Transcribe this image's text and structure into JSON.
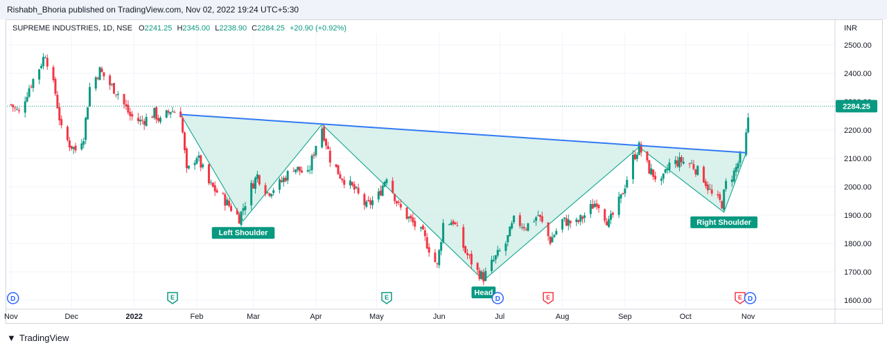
{
  "header": {
    "attribution": "Rishabh_Bhoria published on TradingView.com, Nov 02, 2022 19:24 UTC+5:30"
  },
  "footer": {
    "brand": "TradingView"
  },
  "legend": {
    "symbol": "SUPREME INDUSTRIES, 1D, NSE",
    "o_label": "O",
    "o_value": "2241.25",
    "h_label": "H",
    "h_value": "2345.00",
    "l_label": "L",
    "l_value": "2238.90",
    "c_label": "C",
    "c_value": "2284.25",
    "change": "+20.90 (+0.92%)"
  },
  "colors": {
    "up": "#089981",
    "down": "#f23645",
    "neckline": "#3179f5",
    "pattern_fill": "#d6efea",
    "pattern_line": "#22ab94",
    "price_label": "#089981"
  },
  "chart_data": {
    "type": "candlestick",
    "currency": "INR",
    "last_price": "2284.25",
    "ylim": [
      1600,
      2500
    ],
    "y_ticks": [
      "2500.00",
      "2400.00",
      "2300.00",
      "2200.00",
      "2100.00",
      "2000.00",
      "1900.00",
      "1800.00",
      "1700.00",
      "1600.00"
    ],
    "x_ticks": [
      "Nov",
      "Dec",
      "2022",
      "Feb",
      "Mar",
      "Apr",
      "May",
      "Jun",
      "Jul",
      "Aug",
      "Sep",
      "Oct",
      "Nov"
    ],
    "pattern": {
      "labels": [
        "Left Shoulder",
        "Head",
        "Right Shoulder"
      ],
      "points": [
        {
          "date": "2022-01-24",
          "price": 2255
        },
        {
          "date": "2022-02-24",
          "price": 1880
        },
        {
          "date": "2022-04-04",
          "price": 2220
        },
        {
          "date": "2022-06-23",
          "price": 1670
        },
        {
          "date": "2022-09-08",
          "price": 2140
        },
        {
          "date": "2022-10-20",
          "price": 1910
        },
        {
          "date": "2022-10-31",
          "price": 2120
        }
      ]
    },
    "events": [
      {
        "type": "D",
        "date": "2021-11-02"
      },
      {
        "type": "E",
        "date": "2022-01-20"
      },
      {
        "type": "E",
        "date": "2022-05-06"
      },
      {
        "type": "D",
        "date": "2022-06-30"
      },
      {
        "type": "E",
        "date": "2022-07-25"
      },
      {
        "type": "E",
        "date": "2022-10-28"
      },
      {
        "type": "D",
        "date": "2022-11-02"
      }
    ],
    "path_points": [
      [
        "2021-11-01",
        2290
      ],
      [
        "2021-11-05",
        2260
      ],
      [
        "2021-11-10",
        2350
      ],
      [
        "2021-11-15",
        2420
      ],
      [
        "2021-11-18",
        2470
      ],
      [
        "2021-11-23",
        2330
      ],
      [
        "2021-11-26",
        2200
      ],
      [
        "2021-11-30",
        2150
      ],
      [
        "2021-12-03",
        2130
      ],
      [
        "2021-12-07",
        2180
      ],
      [
        "2021-12-10",
        2350
      ],
      [
        "2021-12-15",
        2410
      ],
      [
        "2021-12-20",
        2360
      ],
      [
        "2021-12-24",
        2330
      ],
      [
        "2021-12-30",
        2250
      ],
      [
        "2022-01-04",
        2230
      ],
      [
        "2022-01-07",
        2240
      ],
      [
        "2022-01-11",
        2260
      ],
      [
        "2022-01-14",
        2230
      ],
      [
        "2022-01-19",
        2270
      ],
      [
        "2022-01-24",
        2260
      ],
      [
        "2022-01-27",
        2050
      ],
      [
        "2022-02-01",
        2110
      ],
      [
        "2022-02-07",
        2010
      ],
      [
        "2022-02-14",
        1960
      ],
      [
        "2022-02-22",
        1890
      ],
      [
        "2022-02-28",
        2000
      ],
      [
        "2022-03-03",
        2040
      ],
      [
        "2022-03-08",
        1980
      ],
      [
        "2022-03-14",
        2010
      ],
      [
        "2022-03-21",
        2070
      ],
      [
        "2022-03-28",
        2040
      ],
      [
        "2022-04-01",
        2150
      ],
      [
        "2022-04-04",
        2210
      ],
      [
        "2022-04-08",
        2100
      ],
      [
        "2022-04-13",
        2040
      ],
      [
        "2022-04-20",
        1990
      ],
      [
        "2022-04-26",
        1930
      ],
      [
        "2022-05-02",
        1970
      ],
      [
        "2022-05-06",
        2040
      ],
      [
        "2022-05-12",
        1930
      ],
      [
        "2022-05-18",
        1880
      ],
      [
        "2022-05-24",
        1830
      ],
      [
        "2022-05-31",
        1720
      ],
      [
        "2022-06-03",
        1870
      ],
      [
        "2022-06-08",
        1880
      ],
      [
        "2022-06-14",
        1770
      ],
      [
        "2022-06-20",
        1700
      ],
      [
        "2022-06-23",
        1680
      ],
      [
        "2022-06-28",
        1740
      ],
      [
        "2022-07-04",
        1800
      ],
      [
        "2022-07-08",
        1880
      ],
      [
        "2022-07-14",
        1860
      ],
      [
        "2022-07-20",
        1900
      ],
      [
        "2022-07-26",
        1810
      ],
      [
        "2022-08-01",
        1880
      ],
      [
        "2022-08-08",
        1870
      ],
      [
        "2022-08-12",
        1900
      ],
      [
        "2022-08-18",
        1950
      ],
      [
        "2022-08-24",
        1870
      ],
      [
        "2022-08-30",
        1960
      ],
      [
        "2022-09-05",
        2100
      ],
      [
        "2022-09-08",
        2140
      ],
      [
        "2022-09-13",
        2060
      ],
      [
        "2022-09-19",
        2010
      ],
      [
        "2022-09-23",
        2080
      ],
      [
        "2022-09-29",
        2090
      ],
      [
        "2022-10-04",
        2080
      ],
      [
        "2022-10-10",
        2030
      ],
      [
        "2022-10-14",
        1970
      ],
      [
        "2022-10-19",
        1940
      ],
      [
        "2022-10-21",
        2010
      ],
      [
        "2022-10-25",
        2050
      ],
      [
        "2022-10-28",
        2100
      ],
      [
        "2022-10-31",
        2180
      ],
      [
        "2022-11-02",
        2284
      ]
    ]
  }
}
